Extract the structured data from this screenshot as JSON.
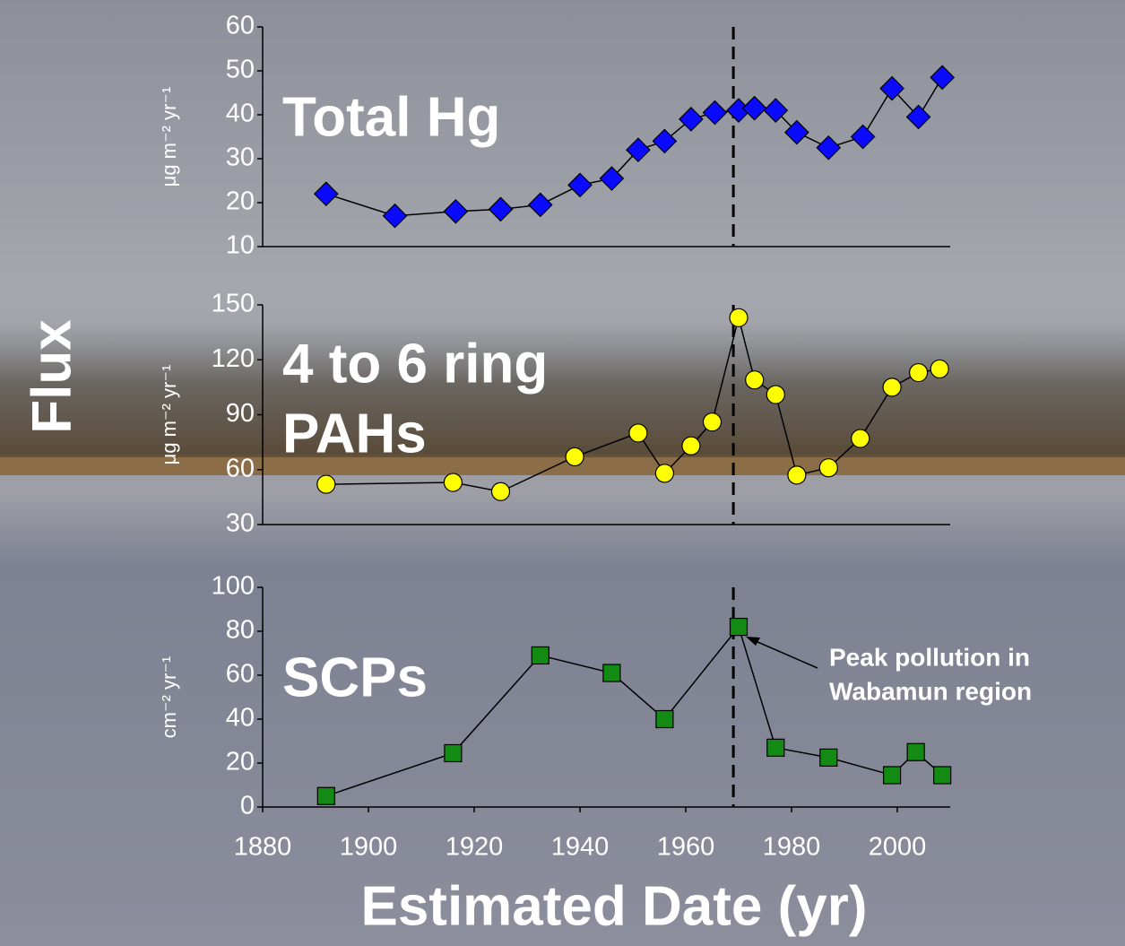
{
  "figure": {
    "ylabel": "Flux",
    "xlabel": "Estimated Date (yr)"
  },
  "chart_data": [
    {
      "type": "line",
      "title": [
        "Total Hg"
      ],
      "ylabel": "μg m⁻² yr⁻¹",
      "x": [
        1892,
        1905,
        1916.5,
        1925,
        1932.5,
        1940,
        1946,
        1951,
        1956,
        1961,
        1965.5,
        1970,
        1973,
        1977,
        1981,
        1987,
        1993.5,
        1999,
        2004,
        2008.5
      ],
      "series": [
        {
          "color": "#0a0aff",
          "marker": "diamond",
          "values": [
            22,
            17,
            18,
            18.5,
            19.5,
            24,
            25.5,
            32,
            34,
            39,
            40.5,
            41,
            41.5,
            41,
            36,
            32.5,
            35,
            46,
            39.5,
            48.5
          ]
        }
      ],
      "xlim": [
        1880,
        2010
      ],
      "ylim": [
        10,
        60
      ],
      "yticks": [
        10,
        20,
        30,
        40,
        50,
        60
      ],
      "reference_line": {
        "x": 1969,
        "style": "dashed"
      }
    },
    {
      "type": "line",
      "title": [
        "4 to 6 ring",
        "PAHs"
      ],
      "ylabel": "μg m⁻² yr⁻¹",
      "x": [
        1892,
        1916,
        1925,
        1939,
        1951,
        1956,
        1961,
        1965,
        1970,
        1973,
        1977,
        1981,
        1987,
        1993,
        1999,
        2004,
        2008
      ],
      "series": [
        {
          "color": "#ffff00",
          "marker": "circle",
          "values": [
            52,
            53,
            48,
            67,
            80,
            58,
            73,
            86,
            143,
            109,
            101,
            57,
            61,
            77,
            105,
            113,
            115
          ]
        }
      ],
      "xlim": [
        1880,
        2010
      ],
      "ylim": [
        30,
        150
      ],
      "yticks": [
        30,
        60,
        90,
        120,
        150
      ],
      "reference_line": {
        "x": 1969,
        "style": "dashed"
      }
    },
    {
      "type": "line",
      "title": [
        "SCPs"
      ],
      "ylabel": "cm⁻² yr⁻¹",
      "x": [
        1892,
        1916,
        1932.5,
        1946,
        1956,
        1970,
        1977,
        1987,
        1999,
        2003.5,
        2008.5
      ],
      "series": [
        {
          "color": "#138a13",
          "marker": "square",
          "values": [
            5,
            24.5,
            69,
            61,
            40,
            82,
            27,
            22.5,
            14.5,
            25,
            14.5
          ]
        }
      ],
      "xlim": [
        1880,
        2010
      ],
      "ylim": [
        0,
        100
      ],
      "yticks": [
        0,
        20,
        40,
        60,
        80,
        100
      ],
      "xticks": [
        1880,
        1900,
        1920,
        1940,
        1960,
        1980,
        2000
      ],
      "reference_line": {
        "x": 1969,
        "style": "dashed"
      },
      "annotation": [
        "Peak pollution in",
        "Wabamun region"
      ]
    }
  ]
}
